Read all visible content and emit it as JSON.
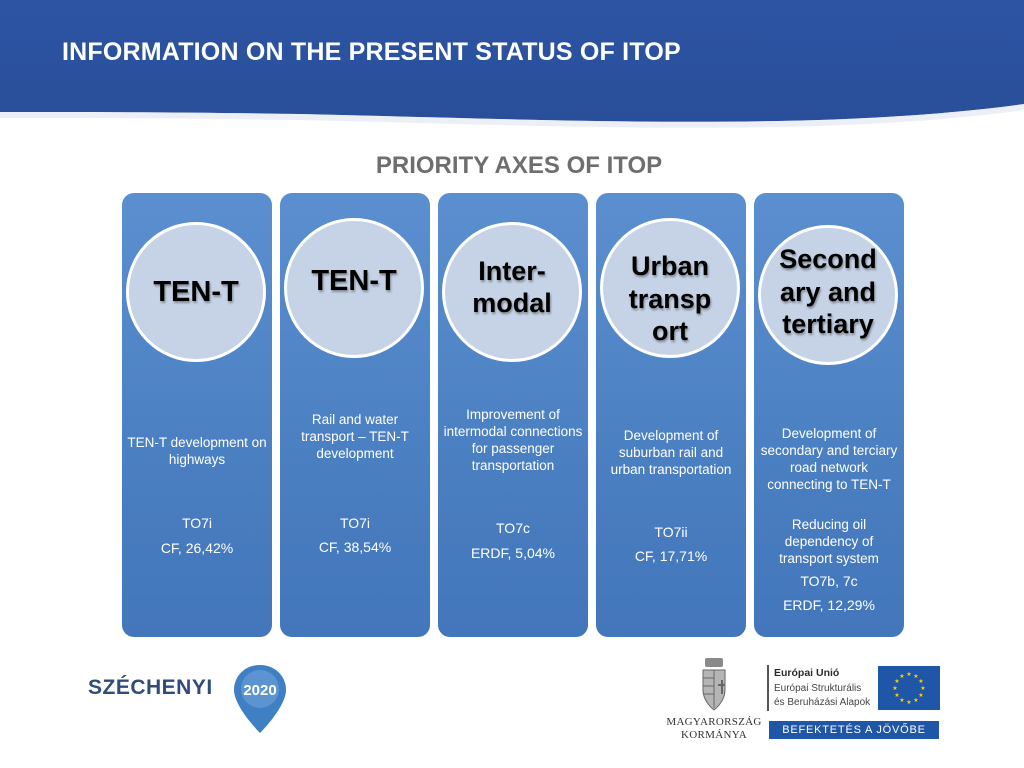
{
  "header": {
    "title": "INFORMATION ON THE PRESENT STATUS OF ITOP",
    "band_color": "#2c54a3"
  },
  "subtitle": "PRIORITY AXES OF ITOP",
  "axes": [
    {
      "circle_label": "TEN-T",
      "description": "TEN-T development on highways",
      "codes": [
        "TO7i",
        "CF, 26,42%"
      ]
    },
    {
      "circle_label": "TEN-T",
      "description": "Rail and water transport – TEN-T development",
      "codes": [
        "TO7i",
        "CF, 38,54%"
      ]
    },
    {
      "circle_label": "Inter-\nmodal",
      "description": "Improvement of intermodal connections for passenger transportation",
      "codes": [
        "TO7c",
        "ERDF, 5,04%"
      ]
    },
    {
      "circle_label": "Urban transp ort",
      "description": "Development of suburban rail and urban transportation",
      "codes": [
        "TO7ii",
        "CF, 17,71%"
      ]
    },
    {
      "circle_label": "Second ary and tertiary",
      "description": "Development of secondary and terciary road network connecting to TEN-T",
      "extra": "Reducing oil dependency of transport system",
      "codes": [
        "TO7b, 7c",
        "ERDF, 12,29%"
      ]
    }
  ],
  "footer": {
    "szechenyi_text": "SZÉCHENYI",
    "szechenyi_year": "2020",
    "kormany_line1": "MAGYARORSZÁG",
    "kormany_line2": "KORMÁNYA",
    "eu_title": "Európai Unió",
    "eu_line1": "Európai Strukturális",
    "eu_line2": "és Beruházási Alapok",
    "befektetes": "BEFEKTETÉS A JÖVŐBE",
    "eu_flag_color": "#1f56a8",
    "star_color": "#ffd200"
  }
}
